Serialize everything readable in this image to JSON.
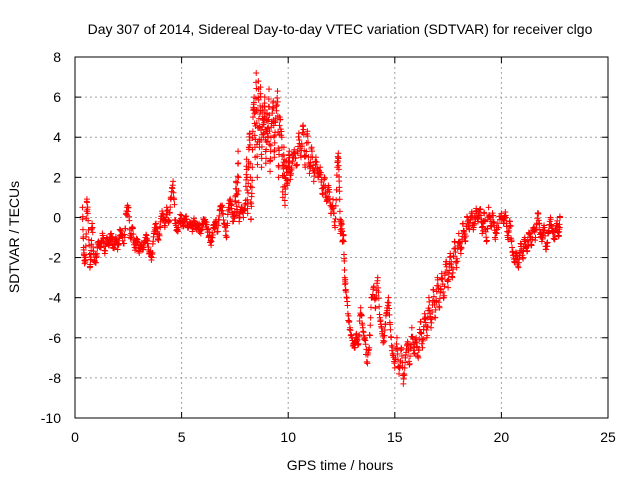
{
  "chart_data": {
    "type": "scatter",
    "title": "Day 307 of 2014, Sidereal Day-to-day VTEC variation (SDTVAR) for receiver clgo",
    "xlabel": "GPS time / hours",
    "ylabel": "SDTVAR / TECUs",
    "xlim": [
      0,
      25
    ],
    "ylim": [
      -10,
      8
    ],
    "xticks": [
      0,
      5,
      10,
      15,
      20,
      25
    ],
    "yticks": [
      -10,
      -8,
      -6,
      -4,
      -2,
      0,
      2,
      4,
      6,
      8
    ],
    "xtick_labels": [
      "0",
      "5",
      "10",
      "15",
      "20",
      "25"
    ],
    "ytick_labels": [
      "-10",
      "-8",
      "-6",
      "-4",
      "-2",
      "0",
      "2",
      "4",
      "6",
      "8"
    ],
    "grid": true,
    "legend": "none",
    "marker": "+",
    "color": "#ff0000",
    "series": [
      {
        "name": "SDTVAR",
        "points": [
          [
            0.35,
            0.5
          ],
          [
            0.4,
            -1.5
          ],
          [
            0.45,
            -2.3
          ],
          [
            0.5,
            -2.0
          ],
          [
            0.55,
            0.8
          ],
          [
            0.6,
            0.2
          ],
          [
            0.7,
            -2.5
          ],
          [
            0.75,
            -1.8
          ],
          [
            0.8,
            -0.3
          ],
          [
            0.9,
            -2.2
          ],
          [
            1.0,
            -2.0
          ],
          [
            1.1,
            -1.2
          ],
          [
            1.2,
            -1.5
          ],
          [
            1.3,
            -0.9
          ],
          [
            1.4,
            -1.8
          ],
          [
            1.5,
            -1.0
          ],
          [
            1.6,
            -1.4
          ],
          [
            1.7,
            -0.8
          ],
          [
            1.8,
            -1.5
          ],
          [
            1.9,
            -1.1
          ],
          [
            2.0,
            -1.6
          ],
          [
            2.1,
            -0.6
          ],
          [
            2.2,
            -0.9
          ],
          [
            2.3,
            -1.3
          ],
          [
            2.4,
            0.2
          ],
          [
            2.5,
            0.5
          ],
          [
            2.6,
            -1.0
          ],
          [
            2.7,
            -0.5
          ],
          [
            2.8,
            -1.5
          ],
          [
            2.9,
            -1.2
          ],
          [
            3.0,
            -1.7
          ],
          [
            3.1,
            -1.4
          ],
          [
            3.2,
            -1.6
          ],
          [
            3.3,
            -1.0
          ],
          [
            3.4,
            -1.3
          ],
          [
            3.5,
            -1.8
          ],
          [
            3.6,
            -2.0
          ],
          [
            3.7,
            -0.8
          ],
          [
            3.8,
            -0.3
          ],
          [
            3.9,
            -1.1
          ],
          [
            4.0,
            -0.5
          ],
          [
            4.1,
            0.2
          ],
          [
            4.2,
            -0.4
          ],
          [
            4.3,
            0.5
          ],
          [
            4.4,
            -0.2
          ],
          [
            4.5,
            0.9
          ],
          [
            4.6,
            1.8
          ],
          [
            4.7,
            -0.3
          ],
          [
            4.8,
            -0.6
          ],
          [
            4.9,
            -0.2
          ],
          [
            5.0,
            0.1
          ],
          [
            5.1,
            -0.4
          ],
          [
            5.2,
            -0.1
          ],
          [
            5.3,
            -0.5
          ],
          [
            5.4,
            -0.3
          ],
          [
            5.5,
            -0.7
          ],
          [
            5.6,
            -0.2
          ],
          [
            5.7,
            -0.6
          ],
          [
            5.8,
            -0.4
          ],
          [
            5.9,
            -0.8
          ],
          [
            6.0,
            -0.3
          ],
          [
            6.1,
            -0.1
          ],
          [
            6.2,
            -0.6
          ],
          [
            6.3,
            -0.9
          ],
          [
            6.4,
            -1.2
          ],
          [
            6.5,
            -0.5
          ],
          [
            6.6,
            -0.2
          ],
          [
            6.7,
            -0.7
          ],
          [
            6.8,
            0.4
          ],
          [
            6.9,
            0.6
          ],
          [
            7.0,
            -0.3
          ],
          [
            7.1,
            -1.0
          ],
          [
            7.2,
            0.5
          ],
          [
            7.3,
            0.8
          ],
          [
            7.4,
            -0.2
          ],
          [
            7.5,
            0.3
          ],
          [
            7.55,
            1.8
          ],
          [
            7.6,
            0.1
          ],
          [
            7.65,
            3.3
          ],
          [
            7.7,
            -0.2
          ],
          [
            7.8,
            0.5
          ],
          [
            7.9,
            0.0
          ],
          [
            8.0,
            0.7
          ],
          [
            8.05,
            2.9
          ],
          [
            8.1,
            0.2
          ],
          [
            8.15,
            3.5
          ],
          [
            8.2,
            4.2
          ],
          [
            8.25,
            -0.1
          ],
          [
            8.3,
            1.5
          ],
          [
            8.35,
            5.0
          ],
          [
            8.4,
            6.0
          ],
          [
            8.45,
            3.0
          ],
          [
            8.5,
            7.2
          ],
          [
            8.55,
            2.0
          ],
          [
            8.6,
            6.8
          ],
          [
            8.65,
            3.5
          ],
          [
            8.7,
            6.5
          ],
          [
            8.75,
            2.5
          ],
          [
            8.8,
            5.5
          ],
          [
            8.85,
            4.0
          ],
          [
            8.9,
            6.0
          ],
          [
            8.95,
            2.7
          ],
          [
            9.0,
            5.2
          ],
          [
            9.05,
            3.8
          ],
          [
            9.1,
            6.4
          ],
          [
            9.15,
            2.3
          ],
          [
            9.2,
            4.5
          ],
          [
            9.3,
            5.8
          ],
          [
            9.35,
            3.0
          ],
          [
            9.4,
            4.8
          ],
          [
            9.5,
            6.3
          ],
          [
            9.55,
            2.0
          ],
          [
            9.6,
            5.0
          ],
          [
            9.7,
            4.0
          ],
          [
            9.75,
            1.0
          ],
          [
            9.8,
            3.5
          ],
          [
            9.85,
            0.6
          ],
          [
            9.9,
            2.8
          ],
          [
            9.95,
            1.6
          ],
          [
            10.0,
            2.5
          ],
          [
            10.05,
            3.3
          ],
          [
            10.1,
            1.9
          ],
          [
            10.2,
            2.8
          ],
          [
            10.3,
            3.2
          ],
          [
            10.4,
            2.6
          ],
          [
            10.5,
            4.2
          ],
          [
            10.6,
            3.0
          ],
          [
            10.7,
            4.6
          ],
          [
            10.8,
            2.5
          ],
          [
            10.9,
            4.3
          ],
          [
            11.0,
            2.2
          ],
          [
            11.1,
            3.5
          ],
          [
            11.2,
            1.8
          ],
          [
            11.3,
            3.0
          ],
          [
            11.4,
            2.0
          ],
          [
            11.5,
            2.5
          ],
          [
            11.6,
            1.2
          ],
          [
            11.7,
            2.0
          ],
          [
            11.8,
            0.8
          ],
          [
            11.9,
            1.5
          ],
          [
            12.0,
            0.2
          ],
          [
            12.1,
            0.9
          ],
          [
            12.2,
            -0.5
          ],
          [
            12.3,
            2.5
          ],
          [
            12.35,
            3.2
          ],
          [
            12.4,
            1.5
          ],
          [
            12.45,
            -0.8
          ],
          [
            12.5,
            -0.3
          ],
          [
            12.55,
            -1.2
          ],
          [
            12.6,
            -0.9
          ],
          [
            12.65,
            -3.0
          ],
          [
            12.7,
            -3.6
          ],
          [
            12.8,
            -4.8
          ],
          [
            12.9,
            -5.5
          ],
          [
            13.0,
            -6.0
          ],
          [
            13.1,
            -6.5
          ],
          [
            13.2,
            -5.8
          ],
          [
            13.3,
            -6.3
          ],
          [
            13.4,
            -4.5
          ],
          [
            13.5,
            -5.5
          ],
          [
            13.6,
            -6.0
          ],
          [
            13.7,
            -7.2
          ],
          [
            13.8,
            -6.5
          ],
          [
            13.9,
            -4.0
          ],
          [
            14.0,
            -3.5
          ],
          [
            14.1,
            -4.5
          ],
          [
            14.2,
            -3.0
          ],
          [
            14.3,
            -5.0
          ],
          [
            14.4,
            -5.8
          ],
          [
            14.5,
            -6.2
          ],
          [
            14.6,
            -4.8
          ],
          [
            14.7,
            -4.0
          ],
          [
            14.8,
            -5.6
          ],
          [
            14.9,
            -6.8
          ],
          [
            15.0,
            -7.5
          ],
          [
            15.1,
            -6.0
          ],
          [
            15.2,
            -7.8
          ],
          [
            15.3,
            -6.5
          ],
          [
            15.4,
            -8.3
          ],
          [
            15.5,
            -7.0
          ],
          [
            15.6,
            -6.2
          ],
          [
            15.7,
            -7.3
          ],
          [
            15.8,
            -5.5
          ],
          [
            15.9,
            -6.8
          ],
          [
            16.0,
            -6.0
          ],
          [
            16.1,
            -7.0
          ],
          [
            16.2,
            -5.2
          ],
          [
            16.3,
            -6.5
          ],
          [
            16.4,
            -4.8
          ],
          [
            16.5,
            -6.0
          ],
          [
            16.6,
            -4.0
          ],
          [
            16.7,
            -5.5
          ],
          [
            16.8,
            -3.6
          ],
          [
            16.9,
            -5.0
          ],
          [
            17.0,
            -3.0
          ],
          [
            17.1,
            -4.5
          ],
          [
            17.2,
            -2.8
          ],
          [
            17.3,
            -4.0
          ],
          [
            17.4,
            -2.2
          ],
          [
            17.5,
            -3.5
          ],
          [
            17.6,
            -1.8
          ],
          [
            17.7,
            -3.0
          ],
          [
            17.8,
            -1.2
          ],
          [
            17.9,
            -2.5
          ],
          [
            18.0,
            -0.8
          ],
          [
            18.1,
            -1.8
          ],
          [
            18.2,
            -0.3
          ],
          [
            18.3,
            -1.2
          ],
          [
            18.4,
            0.0
          ],
          [
            18.5,
            -0.6
          ],
          [
            18.6,
            0.2
          ],
          [
            18.7,
            -0.5
          ],
          [
            18.8,
            0.3
          ],
          [
            18.9,
            -0.2
          ],
          [
            19.0,
            0.4
          ],
          [
            19.1,
            -0.8
          ],
          [
            19.2,
            0.2
          ],
          [
            19.3,
            -1.2
          ],
          [
            19.4,
            0.5
          ],
          [
            19.5,
            -0.4
          ],
          [
            19.6,
            0.1
          ],
          [
            19.7,
            -1.0
          ],
          [
            19.8,
            -0.6
          ],
          [
            20.0,
            0.2
          ],
          [
            20.1,
            -0.3
          ],
          [
            20.2,
            0.1
          ],
          [
            20.3,
            -1.0
          ],
          [
            20.4,
            -0.2
          ],
          [
            20.5,
            -1.5
          ],
          [
            20.6,
            -2.2
          ],
          [
            20.7,
            -1.8
          ],
          [
            20.8,
            -2.5
          ],
          [
            20.9,
            -1.3
          ],
          [
            21.0,
            -2.0
          ],
          [
            21.1,
            -1.0
          ],
          [
            21.2,
            -1.7
          ],
          [
            21.3,
            -0.8
          ],
          [
            21.4,
            -1.4
          ],
          [
            21.5,
            -0.5
          ],
          [
            21.6,
            -1.0
          ],
          [
            21.7,
            0.2
          ],
          [
            21.8,
            -0.6
          ],
          [
            21.9,
            -1.2
          ],
          [
            22.0,
            -0.4
          ],
          [
            22.1,
            -1.6
          ],
          [
            22.2,
            -0.8
          ],
          [
            22.3,
            0.0
          ],
          [
            22.4,
            -0.7
          ],
          [
            22.5,
            -1.1
          ],
          [
            22.6,
            -0.3
          ],
          [
            22.7,
            -0.9
          ],
          [
            22.75,
            0.0
          ]
        ]
      }
    ]
  }
}
